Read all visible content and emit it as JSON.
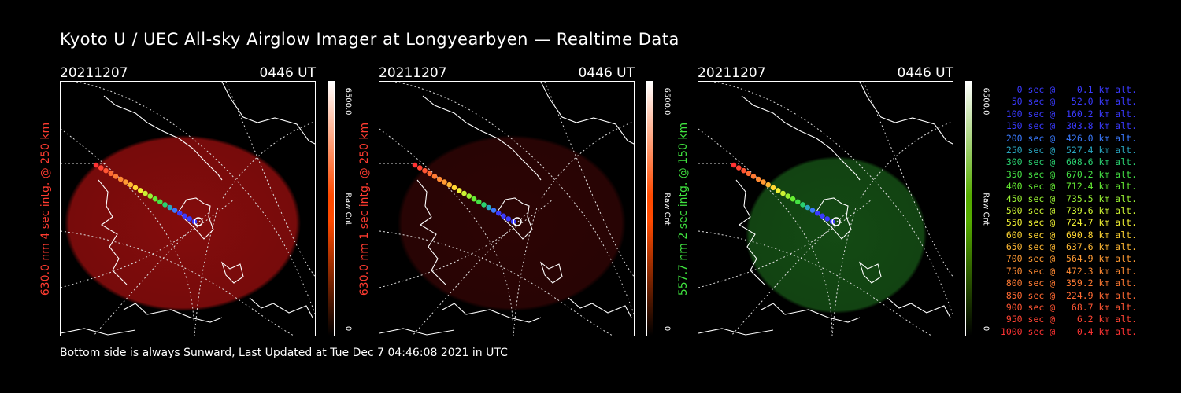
{
  "title": "Kyoto U / UEC All-sky Airglow Imager at Longyearbyen — Realtime Data",
  "footer": "Bottom side is always Sunward, Last Updated at Tue Dec  7 04:46:08 2021 in UTC",
  "panels": [
    {
      "date": "20211207",
      "time": "0446 UT",
      "label": "630.0 nm 4 sec intg. @ 250 km",
      "label_color": "#ff3b30",
      "glow_color": "#b01010",
      "glow_opacity": 0.75,
      "glow_level": 0.55,
      "colorbar_max": "6500.0",
      "colorbar_min": "0",
      "colorbar_label": "Raw Cnt",
      "colorbar_color": "#ff4a00"
    },
    {
      "date": "20211207",
      "time": "0446 UT",
      "label": "630.0 nm 1 sec intg. @ 250 km",
      "label_color": "#ff3b30",
      "glow_color": "#4a0707",
      "glow_opacity": 0.6,
      "glow_level": 0.15,
      "colorbar_max": "6500.0",
      "colorbar_min": "0",
      "colorbar_label": "Raw Cnt",
      "colorbar_color": "#ff4a00"
    },
    {
      "date": "20211207",
      "time": "0446 UT",
      "label": "557.7 nm 2 sec intg. @ 150 km",
      "label_color": "#3fe23f",
      "glow_color": "#1c6a1c",
      "glow_opacity": 0.7,
      "glow_level": 0.35,
      "colorbar_max": "6500.0",
      "colorbar_min": "0",
      "colorbar_label": "Raw Cnt",
      "colorbar_color": "#55aa00"
    }
  ],
  "legend": [
    {
      "text": "   0 sec @    0.1 km alt.",
      "color": "#3a3aff"
    },
    {
      "text": "  50 sec @   52.0 km alt.",
      "color": "#3a3aff"
    },
    {
      "text": " 100 sec @  160.2 km alt.",
      "color": "#3a3aff"
    },
    {
      "text": " 150 sec @  303.8 km alt.",
      "color": "#3a3aff"
    },
    {
      "text": " 200 sec @  426.0 km alt.",
      "color": "#3a7aff"
    },
    {
      "text": " 250 sec @  527.4 km alt.",
      "color": "#2aa6c0"
    },
    {
      "text": " 300 sec @  608.6 km alt.",
      "color": "#2ad070"
    },
    {
      "text": " 350 sec @  670.2 km alt.",
      "color": "#44e044"
    },
    {
      "text": " 400 sec @  712.4 km alt.",
      "color": "#66ee33"
    },
    {
      "text": " 450 sec @  735.5 km alt.",
      "color": "#99f233"
    },
    {
      "text": " 500 sec @  739.6 km alt.",
      "color": "#ccf233"
    },
    {
      "text": " 550 sec @  724.7 km alt.",
      "color": "#f2f233"
    },
    {
      "text": " 600 sec @  690.8 km alt.",
      "color": "#ffd633"
    },
    {
      "text": " 650 sec @  637.6 km alt.",
      "color": "#ffb833"
    },
    {
      "text": " 700 sec @  564.9 km alt.",
      "color": "#ff9a33"
    },
    {
      "text": " 750 sec @  472.3 km alt.",
      "color": "#ff8a33"
    },
    {
      "text": " 800 sec @  359.2 km alt.",
      "color": "#ff7a33"
    },
    {
      "text": " 850 sec @  224.9 km alt.",
      "color": "#ff6a33"
    },
    {
      "text": " 900 sec @   68.7 km alt.",
      "color": "#ff5533"
    },
    {
      "text": " 950 sec @    6.2 km alt.",
      "color": "#ff4433"
    },
    {
      "text": "1000 sec @    0.4 km alt.",
      "color": "#ff3333"
    }
  ]
}
